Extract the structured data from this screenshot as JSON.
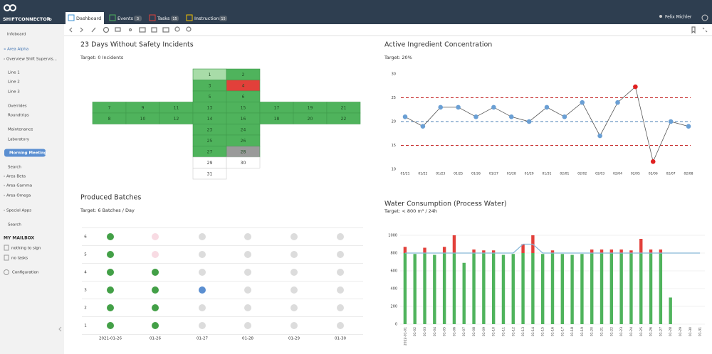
{
  "header": {
    "logo": "SHIFTCONNECTOR",
    "logo_suffix": "io",
    "tabs": [
      {
        "label": "Dashboard"
      },
      {
        "label": "Events",
        "count": 3
      },
      {
        "label": "Tasks",
        "count": 15
      },
      {
        "label": "Instructions",
        "count": 15
      }
    ],
    "user": "Felix Michler"
  },
  "sidebar": {
    "items": [
      {
        "label": "Infoboard"
      },
      {
        "label": "« Area Alpha",
        "color": "#3a6fb0"
      },
      {
        "label": "› Overview Shift Supervis..."
      },
      {
        "label": "Line 1"
      },
      {
        "label": "Line 2"
      },
      {
        "label": "Line 3"
      },
      {
        "label": "Overrides"
      },
      {
        "label": "Roundtrips"
      },
      {
        "label": "Maintenance"
      },
      {
        "label": "Laboratory"
      },
      {
        "label": "Morning Meeting",
        "active": true
      },
      {
        "label": "Search"
      },
      {
        "label": "› Area Beta"
      },
      {
        "label": "› Area Gamma"
      },
      {
        "label": "› Area Omega"
      },
      {
        "label": "› Special Apps"
      },
      {
        "label": "Search"
      }
    ],
    "mailbox_title": "MY MAILBOX",
    "mailbox": [
      "nothing to sign",
      "no tasks"
    ],
    "configuration": "Configuration"
  },
  "calendar": {
    "title": "23 Days Without Safety Incidents",
    "subtitle": "Target: 0 Incidents",
    "days": [
      {
        "day": 1,
        "color": "#a8dca8"
      },
      {
        "day": 2,
        "color": "#4fb35c"
      },
      {
        "day": 3,
        "color": "#4fb35c"
      },
      {
        "day": 4,
        "color": "#e2403a"
      },
      {
        "day": 5,
        "color": "#4fb35c"
      },
      {
        "day": 6,
        "color": "#4fb35c"
      },
      {
        "day": 7,
        "color": "#4fb35c"
      },
      {
        "day": 8,
        "color": "#4fb35c"
      },
      {
        "day": 9,
        "color": "#4fb35c"
      },
      {
        "day": 10,
        "color": "#4fb35c"
      },
      {
        "day": 11,
        "color": "#4fb35c"
      },
      {
        "day": 12,
        "color": "#4fb35c"
      },
      {
        "day": 13,
        "color": "#4fb35c"
      },
      {
        "day": 14,
        "color": "#4fb35c"
      },
      {
        "day": 15,
        "color": "#4fb35c"
      },
      {
        "day": 16,
        "color": "#4fb35c"
      },
      {
        "day": 17,
        "color": "#4fb35c"
      },
      {
        "day": 18,
        "color": "#4fb35c"
      },
      {
        "day": 19,
        "color": "#4fb35c"
      },
      {
        "day": 20,
        "color": "#4fb35c"
      },
      {
        "day": 21,
        "color": "#4fb35c"
      },
      {
        "day": 22,
        "color": "#4fb35c"
      },
      {
        "day": 23,
        "color": "#4fb35c"
      },
      {
        "day": 24,
        "color": "#4fb35c"
      },
      {
        "day": 25,
        "color": "#4fb35c"
      },
      {
        "day": 26,
        "color": "#4fb35c"
      },
      {
        "day": 27,
        "color": "#4fb35c"
      },
      {
        "day": 28,
        "color": "#9a9a9a"
      },
      {
        "day": 29,
        "color": "#ffffff"
      },
      {
        "day": 30,
        "color": "#ffffff"
      },
      {
        "day": 31,
        "color": "#ffffff"
      }
    ]
  },
  "batches": {
    "title": "Produced Batches",
    "subtitle": "Target: 6 Batches / Day",
    "rows": [
      1,
      2,
      3,
      4,
      5,
      6
    ],
    "columns": [
      "2021-01-26",
      "01-26",
      "01-27",
      "01-28",
      "01-29",
      "01-30"
    ],
    "dots": [
      [
        "#43a047",
        "#43a047",
        "#43a047",
        "#43a047",
        "#43a047",
        "#43a047"
      ],
      [
        "#43a047",
        "#43a047",
        "#43a047",
        "#43a047",
        "#f8dbe3",
        "#f8dbe3"
      ],
      [
        "#dcdcdc",
        "#dcdcdc",
        "#5b8fd1",
        "#dcdcdc",
        "#dcdcdc",
        "#dcdcdc"
      ],
      [
        "#dcdcdc",
        "#dcdcdc",
        "#dcdcdc",
        "#dcdcdc",
        "#dcdcdc",
        "#dcdcdc"
      ],
      [
        "#dcdcdc",
        "#dcdcdc",
        "#dcdcdc",
        "#dcdcdc",
        "#dcdcdc",
        "#dcdcdc"
      ],
      [
        "#dcdcdc",
        "#dcdcdc",
        "#dcdcdc",
        "#dcdcdc",
        "#dcdcdc",
        "#dcdcdc"
      ]
    ]
  },
  "chart_data": [
    {
      "type": "line",
      "title": "Active Ingredient Concentration",
      "subtitle": "Target: 20%",
      "categories": [
        "01/21",
        "01/22",
        "01/23",
        "01/25",
        "01/26",
        "01/27",
        "01/28",
        "01/29",
        "01/31",
        "02/01",
        "02/02",
        "02/03",
        "02/04",
        "02/05",
        "02/06",
        "02/07",
        "02/08"
      ],
      "values": [
        21,
        19,
        23,
        23,
        21,
        23,
        21,
        20,
        23,
        21,
        24,
        17,
        24,
        27.3,
        11.6,
        20,
        19
      ],
      "color": "#6a9fd4",
      "line_color": "#555555",
      "outlier_color": "#e02020",
      "ylim": [
        10,
        30
      ],
      "yticks": [
        10,
        15,
        20,
        25,
        30
      ],
      "reference_lines": [
        {
          "value": 25,
          "color": "#c62828"
        },
        {
          "value": 20,
          "color": "#4a7fb5"
        },
        {
          "value": 15,
          "color": "#c62828"
        }
      ]
    },
    {
      "type": "bar",
      "title": "Water Consumption (Process Water)",
      "subtitle": "Target: < 800 m³ / 24h",
      "stacked": true,
      "categories": [
        "2022-01-01",
        "01-02",
        "01-03",
        "01-04",
        "01-05",
        "01-06",
        "01-07",
        "01-08",
        "01-09",
        "01-10",
        "01-11",
        "01-12",
        "01-13",
        "01-14",
        "01-15",
        "01-16",
        "01-17",
        "01-18",
        "01-19",
        "01-20",
        "01-21",
        "01-22",
        "01-23",
        "01-24",
        "01-25",
        "01-26",
        "01-27",
        "01-28",
        "01-29",
        "01-30",
        "01-31"
      ],
      "series": [
        {
          "color": "#4fb35c",
          "values": [
            800,
            790,
            800,
            780,
            800,
            800,
            690,
            800,
            800,
            800,
            780,
            790,
            800,
            800,
            790,
            800,
            790,
            780,
            790,
            800,
            800,
            800,
            800,
            800,
            800,
            800,
            800,
            300,
            0,
            0,
            0
          ]
        },
        {
          "color": "#e2403a",
          "values": [
            70,
            0,
            60,
            0,
            70,
            200,
            0,
            40,
            30,
            30,
            0,
            0,
            100,
            200,
            0,
            30,
            0,
            0,
            0,
            40,
            40,
            40,
            40,
            30,
            160,
            40,
            40,
            0,
            0,
            0,
            0
          ]
        },
        {
          "type": "line",
          "color": "#86b6d8",
          "values": [
            800,
            800,
            800,
            800,
            800,
            800,
            800,
            800,
            800,
            800,
            800,
            800,
            900,
            900,
            800,
            800,
            800,
            800,
            800,
            800,
            800,
            800,
            800,
            800,
            800,
            800,
            800,
            800,
            800,
            800,
            800
          ]
        }
      ],
      "ylim": [
        0,
        1000
      ],
      "yticks": [
        0,
        200,
        400,
        600,
        800,
        1000
      ],
      "grid": true
    }
  ]
}
